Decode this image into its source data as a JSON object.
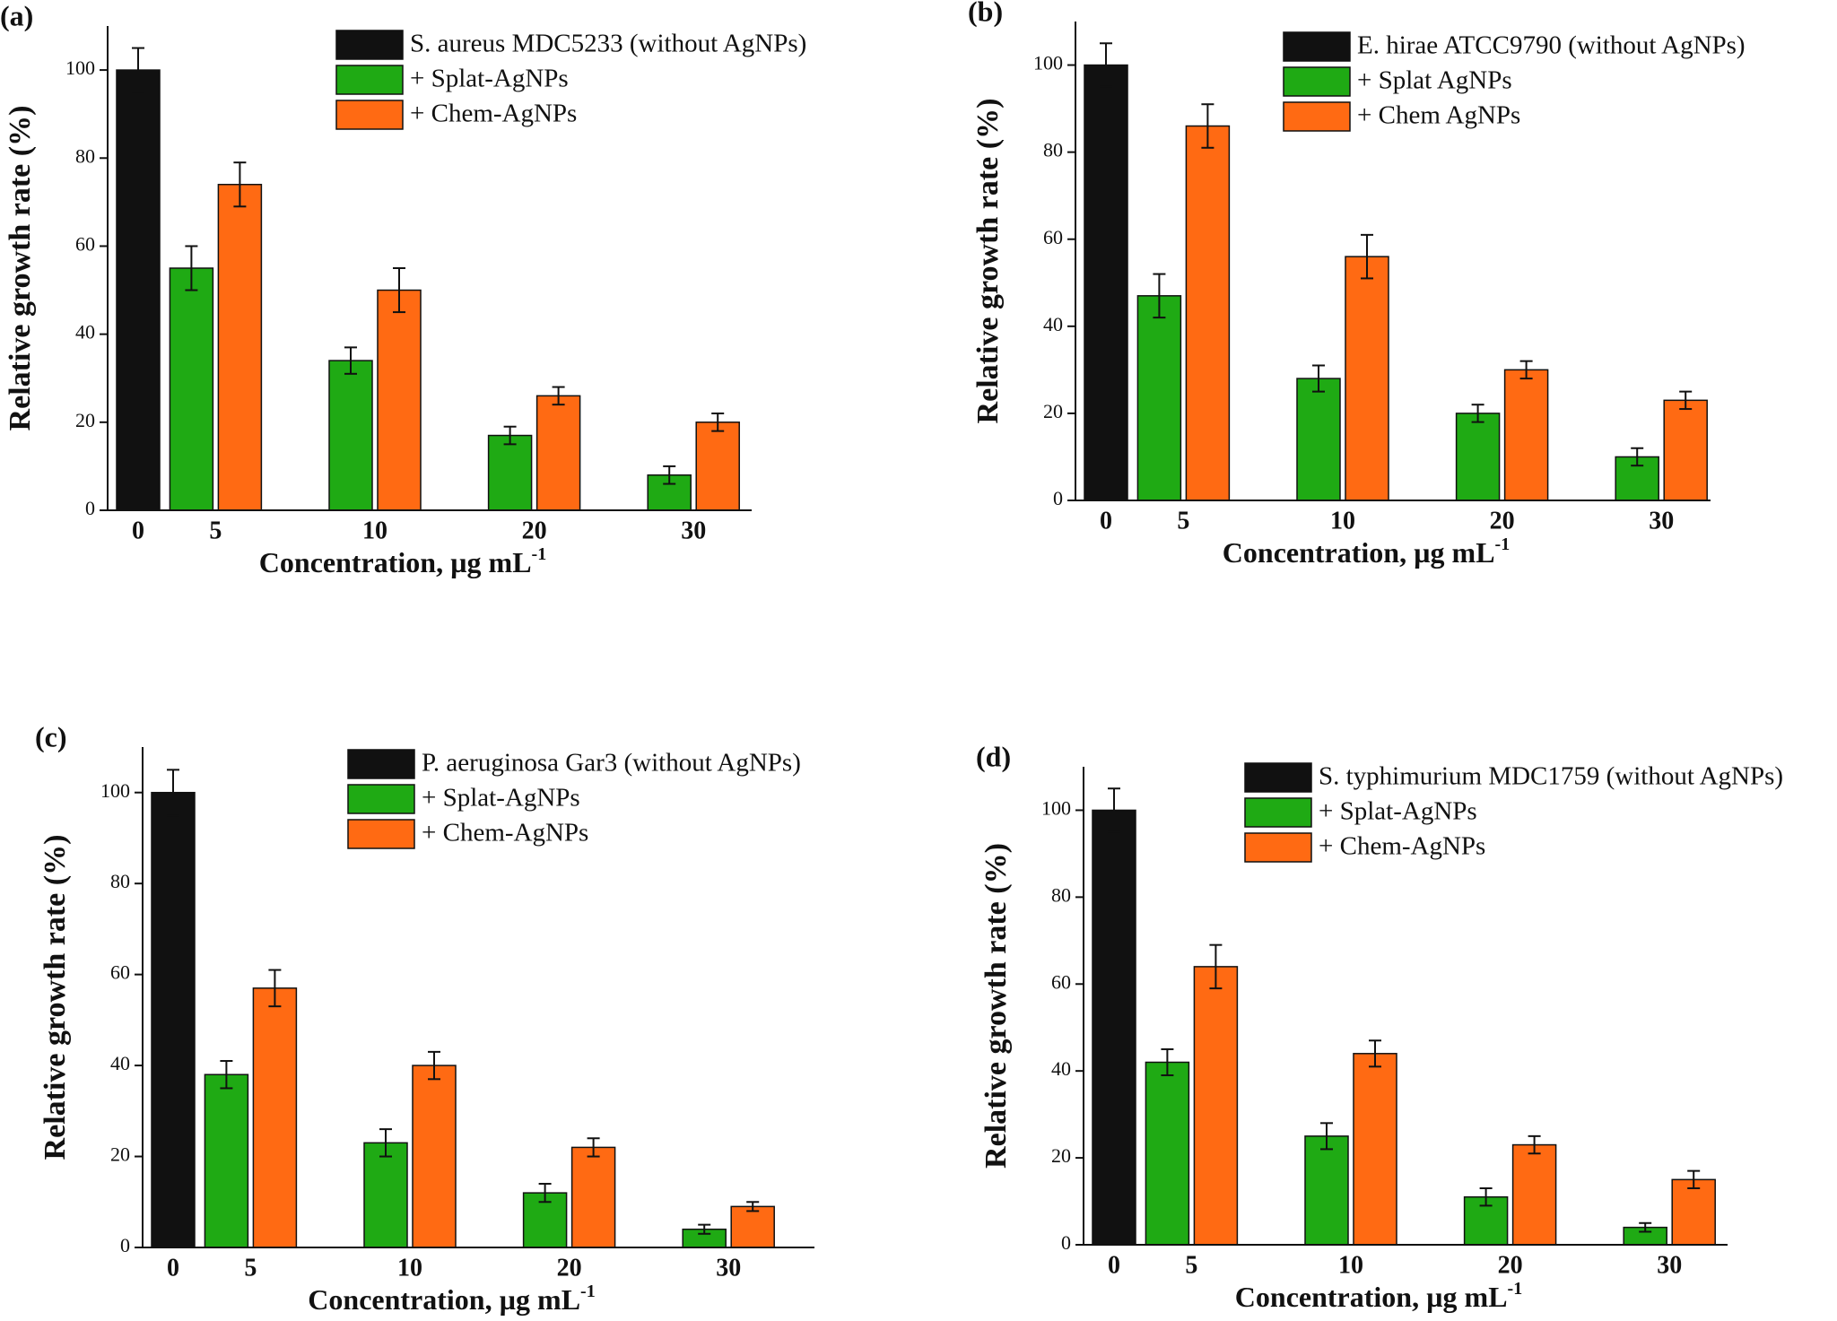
{
  "chart_data": [
    {
      "type": "bar",
      "panel_label": "(a)",
      "ylabel": "Relative growth rate (%)",
      "xlabel": "Concentration, µg mL",
      "xlabel_sup": "-1",
      "categories": [
        "0",
        "5",
        "10",
        "20",
        "30"
      ],
      "ylim": [
        0,
        110
      ],
      "yticks": [
        0,
        20,
        40,
        60,
        80,
        100
      ],
      "series": [
        {
          "name": "S. aureus MDC5233 (without AgNPs)",
          "color": "#111111",
          "values": [
            100,
            null,
            null,
            null,
            null
          ],
          "errors": [
            5,
            null,
            null,
            null,
            null
          ]
        },
        {
          "name": "+ Splat-AgNPs",
          "color": "#1faa14",
          "values": [
            null,
            55,
            34,
            17,
            8
          ],
          "errors": [
            null,
            5,
            3,
            2,
            2
          ]
        },
        {
          "name": "+ Chem-AgNPs",
          "color": "#ff6a13",
          "values": [
            null,
            74,
            50,
            26,
            20
          ],
          "errors": [
            null,
            5,
            5,
            2,
            2
          ]
        }
      ]
    },
    {
      "type": "bar",
      "panel_label": "(b)",
      "ylabel": "Relative growth rate (%)",
      "xlabel": "Concentration, µg mL",
      "xlabel_sup": "-1",
      "categories": [
        "0",
        "5",
        "10",
        "20",
        "30"
      ],
      "ylim": [
        0,
        110
      ],
      "yticks": [
        0,
        20,
        40,
        60,
        80,
        100
      ],
      "series": [
        {
          "name": "E. hirae ATCC9790 (without AgNPs)",
          "color": "#111111",
          "values": [
            100,
            null,
            null,
            null,
            null
          ],
          "errors": [
            5,
            null,
            null,
            null,
            null
          ]
        },
        {
          "name": "+ Splat AgNPs",
          "color": "#1faa14",
          "values": [
            null,
            47,
            28,
            20,
            10
          ],
          "errors": [
            null,
            5,
            3,
            2,
            2
          ]
        },
        {
          "name": "+ Chem AgNPs",
          "color": "#ff6a13",
          "values": [
            null,
            86,
            56,
            30,
            23
          ],
          "errors": [
            null,
            5,
            5,
            2,
            2
          ]
        }
      ]
    },
    {
      "type": "bar",
      "panel_label": "(c)",
      "ylabel": "Relative growth rate (%)",
      "xlabel": "Concentration, µg mL",
      "xlabel_sup": "-1",
      "categories": [
        "0",
        "5",
        "10",
        "20",
        "30"
      ],
      "ylim": [
        0,
        110
      ],
      "yticks": [
        0,
        20,
        40,
        60,
        80,
        100
      ],
      "series": [
        {
          "name": "P. aeruginosa Gar3 (without AgNPs)",
          "color": "#111111",
          "values": [
            100,
            null,
            null,
            null,
            null
          ],
          "errors": [
            5,
            null,
            null,
            null,
            null
          ]
        },
        {
          "name": "+ Splat-AgNPs",
          "color": "#1faa14",
          "values": [
            null,
            38,
            23,
            12,
            4
          ],
          "errors": [
            null,
            3,
            3,
            2,
            1
          ]
        },
        {
          "name": "+ Chem-AgNPs",
          "color": "#ff6a13",
          "values": [
            null,
            57,
            40,
            22,
            9
          ],
          "errors": [
            null,
            4,
            3,
            2,
            1
          ]
        }
      ]
    },
    {
      "type": "bar",
      "panel_label": "(d)",
      "ylabel": "Relative growth rate (%)",
      "xlabel": "Concentration, µg mL",
      "xlabel_sup": "-1",
      "categories": [
        "0",
        "5",
        "10",
        "20",
        "30"
      ],
      "ylim": [
        0,
        110
      ],
      "yticks": [
        0,
        20,
        40,
        60,
        80,
        100
      ],
      "series": [
        {
          "name": "S. typhimurium MDC1759 (without AgNPs)",
          "color": "#111111",
          "values": [
            100,
            null,
            null,
            null,
            null
          ],
          "errors": [
            5,
            null,
            null,
            null,
            null
          ]
        },
        {
          "name": "+ Splat-AgNPs",
          "color": "#1faa14",
          "values": [
            null,
            42,
            25,
            11,
            4
          ],
          "errors": [
            null,
            3,
            3,
            2,
            1
          ]
        },
        {
          "name": "+ Chem-AgNPs",
          "color": "#ff6a13",
          "values": [
            null,
            64,
            44,
            23,
            15
          ],
          "errors": [
            null,
            5,
            3,
            2,
            2
          ]
        }
      ]
    }
  ]
}
